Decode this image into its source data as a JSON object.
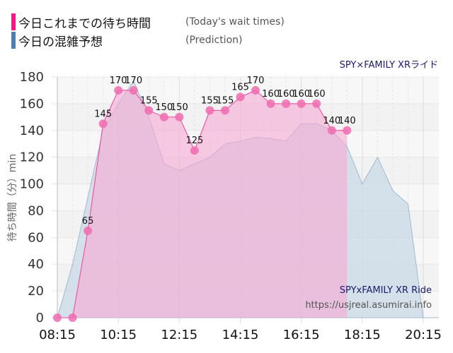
{
  "legend": {
    "items": [
      {
        "label": "今日これまでの待ち時間",
        "sub": "(Today's wait times)",
        "color": "#f0198c"
      },
      {
        "label": "今日の混雑予想",
        "sub": "(Prediction)",
        "color": "#4a7fb0"
      }
    ]
  },
  "chart_title": "SPY×FAMILY XRライド",
  "watermark": {
    "name": "SPYxFAMILY XR Ride",
    "url": "https://usjreal.asumirai.info"
  },
  "colors": {
    "actual_line": "#f0409a",
    "actual_fill": "#f7a8d4",
    "actual_marker": "#f06bb0",
    "prediction_line": "#9fbad0",
    "prediction_fill": "#c9d9e6",
    "title": "#1a1a6e",
    "axis_text": "#333333"
  },
  "chart_data": {
    "type": "area",
    "title": "SPY×FAMILY XRライド",
    "xlabel": "",
    "ylabel": "待ち時間（分）min",
    "ylim": [
      0,
      180
    ],
    "yticks": [
      0,
      20,
      40,
      60,
      80,
      100,
      120,
      140,
      160,
      180
    ],
    "xticks": [
      "08:15",
      "10:15",
      "12:15",
      "14:15",
      "16:15",
      "18:15",
      "20:15"
    ],
    "grid": true,
    "series": [
      {
        "name": "今日これまでの待ち時間 (Today's wait times)",
        "x": [
          "08:15",
          "08:45",
          "09:15",
          "09:45",
          "10:15",
          "10:45",
          "11:15",
          "11:45",
          "12:15",
          "12:45",
          "13:15",
          "13:45",
          "14:15",
          "14:45",
          "15:15",
          "15:45",
          "16:15",
          "16:45",
          "17:15",
          "17:45"
        ],
        "values": [
          0,
          0,
          65,
          145,
          170,
          170,
          155,
          150,
          150,
          125,
          155,
          155,
          165,
          170,
          160,
          160,
          160,
          160,
          140,
          140
        ]
      },
      {
        "name": "今日の混雑予想 (Prediction)",
        "x": [
          "08:15",
          "08:30",
          "08:45",
          "09:15",
          "09:45",
          "10:15",
          "10:45",
          "11:15",
          "11:45",
          "12:15",
          "12:45",
          "13:15",
          "13:45",
          "14:15",
          "14:45",
          "15:15",
          "15:45",
          "16:15",
          "16:45",
          "17:15",
          "17:45",
          "18:15",
          "18:45",
          "19:15",
          "19:45",
          "20:15",
          "20:45"
        ],
        "values": [
          0,
          20,
          40,
          90,
          140,
          160,
          177,
          150,
          115,
          110,
          115,
          120,
          130,
          132,
          135,
          134,
          132,
          145,
          145,
          140,
          128,
          100,
          120,
          95,
          85,
          0,
          0
        ]
      }
    ]
  }
}
